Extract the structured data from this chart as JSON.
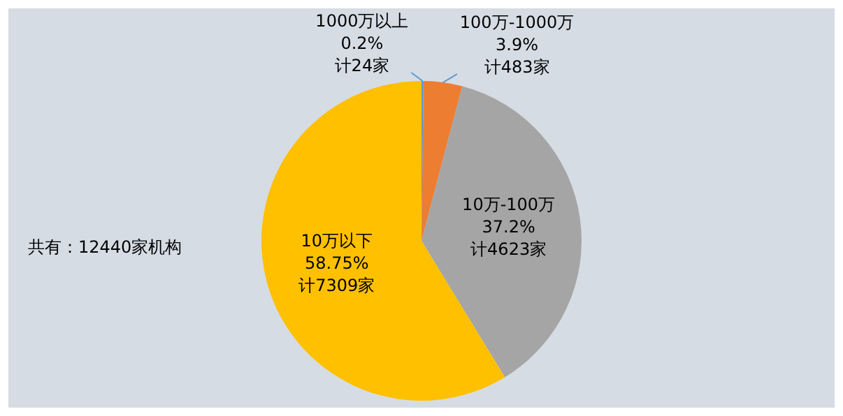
{
  "chart_data": {
    "type": "pie",
    "categories": [
      "1000万以上",
      "100万-1000万",
      "10万-100万",
      "10万以下"
    ],
    "values": [
      0.2,
      3.9,
      37.2,
      58.75
    ],
    "colors": [
      "#5b9bd5",
      "#ed7d31",
      "#a5a5a5",
      "#ffc000"
    ],
    "value_labels": [
      "0.2%\n计24家",
      "3.9%\n计483家",
      "37.2%\n计4623家",
      "58.75%\n计7309家"
    ],
    "annotations": [
      "共有：12440家机构"
    ],
    "legend": false
  }
}
